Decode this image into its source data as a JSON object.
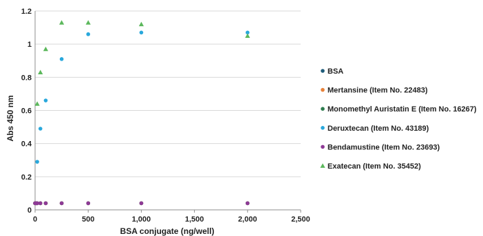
{
  "chart_data": {
    "type": "scatter",
    "xlabel": "BSA conjugate (ng/well)",
    "ylabel": "Abs 450 nm",
    "xlim": [
      0,
      2500
    ],
    "ylim": [
      0,
      1.2
    ],
    "x_ticks": [
      0,
      500,
      1000,
      1500,
      2000,
      2500
    ],
    "x_tick_labels": [
      "0",
      "500",
      "1,000",
      "1,500",
      "2,000",
      "2,500"
    ],
    "y_ticks": [
      0,
      0.2,
      0.4,
      0.6,
      0.8,
      1,
      1.2
    ],
    "y_tick_labels": [
      "0",
      "0.2",
      "0.4",
      "0.6",
      "0.8",
      "1",
      "1.2"
    ],
    "grid": "horizontal",
    "legend_position": "right",
    "series": [
      {
        "name": "BSA",
        "color": "#1f5c7a",
        "marker": "circle",
        "x": [
          0,
          10,
          20,
          50,
          100,
          250,
          500,
          1000,
          2000
        ],
        "y": [
          0.04,
          0.04,
          0.04,
          0.04,
          0.04,
          0.04,
          0.04,
          0.04,
          0.04
        ]
      },
      {
        "name": "Mertansine (Item No. 22483)",
        "color": "#e8823a",
        "marker": "circle",
        "x": [
          0,
          10,
          20,
          50,
          100,
          250,
          500,
          1000,
          2000
        ],
        "y": [
          0.04,
          0.04,
          0.04,
          0.04,
          0.04,
          0.04,
          0.04,
          0.04,
          0.04
        ]
      },
      {
        "name": "Monomethyl Auristatin E (Item No. 16267)",
        "color": "#2e7d4f",
        "marker": "circle",
        "x": [
          0,
          10,
          20,
          50,
          100,
          250,
          500,
          1000,
          2000
        ],
        "y": [
          0.04,
          0.04,
          0.04,
          0.04,
          0.04,
          0.04,
          0.04,
          0.04,
          0.04
        ]
      },
      {
        "name": "Deruxtecan (Item No. 43189)",
        "color": "#29a8dc",
        "marker": "circle",
        "x": [
          20,
          50,
          100,
          250,
          500,
          1000,
          2000
        ],
        "y": [
          0.29,
          0.49,
          0.66,
          0.91,
          1.06,
          1.07,
          1.07
        ]
      },
      {
        "name": "Bendamustine (Item No. 23693)",
        "color": "#8e3a96",
        "marker": "circle",
        "x": [
          0,
          10,
          20,
          50,
          100,
          250,
          500,
          1000,
          2000
        ],
        "y": [
          0.04,
          0.04,
          0.04,
          0.04,
          0.04,
          0.04,
          0.04,
          0.04,
          0.04
        ]
      },
      {
        "name": "Exatecan (Item No. 35452)",
        "color": "#5cb85c",
        "marker": "triangle",
        "x": [
          20,
          50,
          100,
          250,
          500,
          1000,
          2000
        ],
        "y": [
          0.64,
          0.83,
          0.97,
          1.13,
          1.13,
          1.12,
          1.05
        ]
      }
    ]
  }
}
